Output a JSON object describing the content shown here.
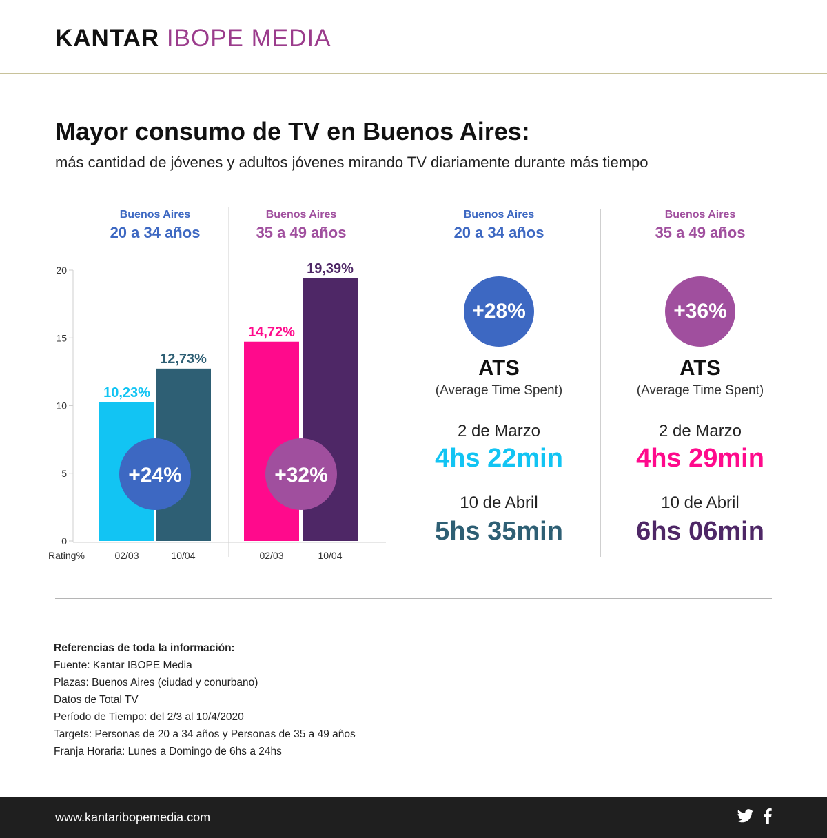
{
  "brand": {
    "part1": "KANTAR",
    "part2": "IBOPE MEDIA"
  },
  "title": "Mayor consumo de TV en Buenos Aires:",
  "subtitle": "más cantidad de jóvenes y adultos jóvenes mirando TV diariamente durante más tiempo",
  "colors": {
    "blue": "#3d68c2",
    "purple": "#a04f9e",
    "cyan": "#12c4f3",
    "teal": "#2e5f74",
    "magenta": "#ff0a8c",
    "darkpurple": "#4e2766"
  },
  "chart_groups": [
    {
      "line1": "Buenos Aires",
      "line2": "20 a 34 años",
      "badge": "+24%"
    },
    {
      "line1": "Buenos Aires",
      "line2": "35 a 49 años",
      "badge": "+32%"
    }
  ],
  "chart_data": {
    "type": "bar",
    "title": "Mayor consumo de TV en Buenos Aires",
    "ylabel": "Rating%",
    "ylim": [
      0,
      20
    ],
    "yticks": [
      "0",
      "5",
      "10",
      "15",
      "20"
    ],
    "categories": [
      "02/03",
      "10/04"
    ],
    "series": [
      {
        "name": "Buenos Aires 20 a 34 años",
        "values": [
          10.23,
          12.73
        ],
        "labels": [
          "10,23%",
          "12,73%"
        ]
      },
      {
        "name": "Buenos Aires 35 a 49 años",
        "values": [
          14.72,
          19.39
        ],
        "labels": [
          "14,72%",
          "19,39%"
        ]
      }
    ]
  },
  "ats": [
    {
      "line1": "Buenos Aires",
      "line2": "20 a 34 años",
      "badge": "+28%",
      "label": "ATS",
      "sublabel": "(Average Time Spent)",
      "date1": "2 de Marzo",
      "value1": "4hs 22min",
      "date2": "10 de Abril",
      "value2": "5hs 35min"
    },
    {
      "line1": "Buenos Aires",
      "line2": "35 a 49 años",
      "badge": "+36%",
      "label": "ATS",
      "sublabel": "(Average Time Spent)",
      "date1": "2 de Marzo",
      "value1": "4hs 29min",
      "date2": "10 de Abril",
      "value2": "6hs 06min"
    }
  ],
  "references": {
    "title": "Referencias de toda la información:",
    "items": [
      "Fuente: Kantar IBOPE Media",
      "Plazas: Buenos Aires (ciudad y conurbano)",
      "Datos de Total TV",
      "Período de Tiempo: del 2/3 al 10/4/2020",
      "Targets: Personas de 20 a 34 años y Personas de 35 a 49 años",
      "Franja Horaria: Lunes a Domingo de 6hs a 24hs"
    ]
  },
  "footer": {
    "url": "www.kantaribopemedia.com",
    "icons": [
      "twitter-icon",
      "facebook-icon"
    ]
  }
}
